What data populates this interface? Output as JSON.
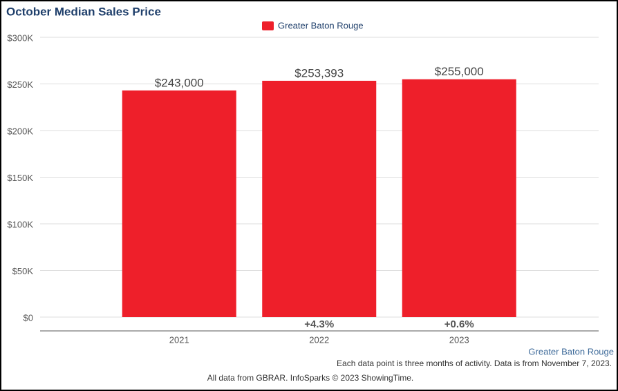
{
  "chart_data": {
    "type": "bar",
    "title": "October Median Sales Price",
    "categories": [
      "2021",
      "2022",
      "2023"
    ],
    "series": [
      {
        "name": "Greater Baton Rouge",
        "color": "#ee1f2a",
        "values": [
          243000,
          253393,
          255000
        ],
        "value_labels": [
          "$243,000",
          "$253,393",
          "$255,000"
        ]
      }
    ],
    "annotations": [
      null,
      "+4.3%",
      "+0.6%"
    ],
    "ylim": [
      0,
      300000
    ],
    "yticks": [
      {
        "value": 0,
        "label": "$0"
      },
      {
        "value": 50000,
        "label": "$50K"
      },
      {
        "value": 100000,
        "label": "$100K"
      },
      {
        "value": 150000,
        "label": "$150K"
      },
      {
        "value": 200000,
        "label": "$200K"
      },
      {
        "value": 250000,
        "label": "$250K"
      },
      {
        "value": 300000,
        "label": "$300K"
      }
    ],
    "grid": true,
    "footer": {
      "area": "Greater Baton Rouge",
      "note": "Each data point is three months of activity. Data is from November 7, 2023.",
      "source": "All data from GBRAR. InfoSparks © 2023 ShowingTime."
    }
  }
}
